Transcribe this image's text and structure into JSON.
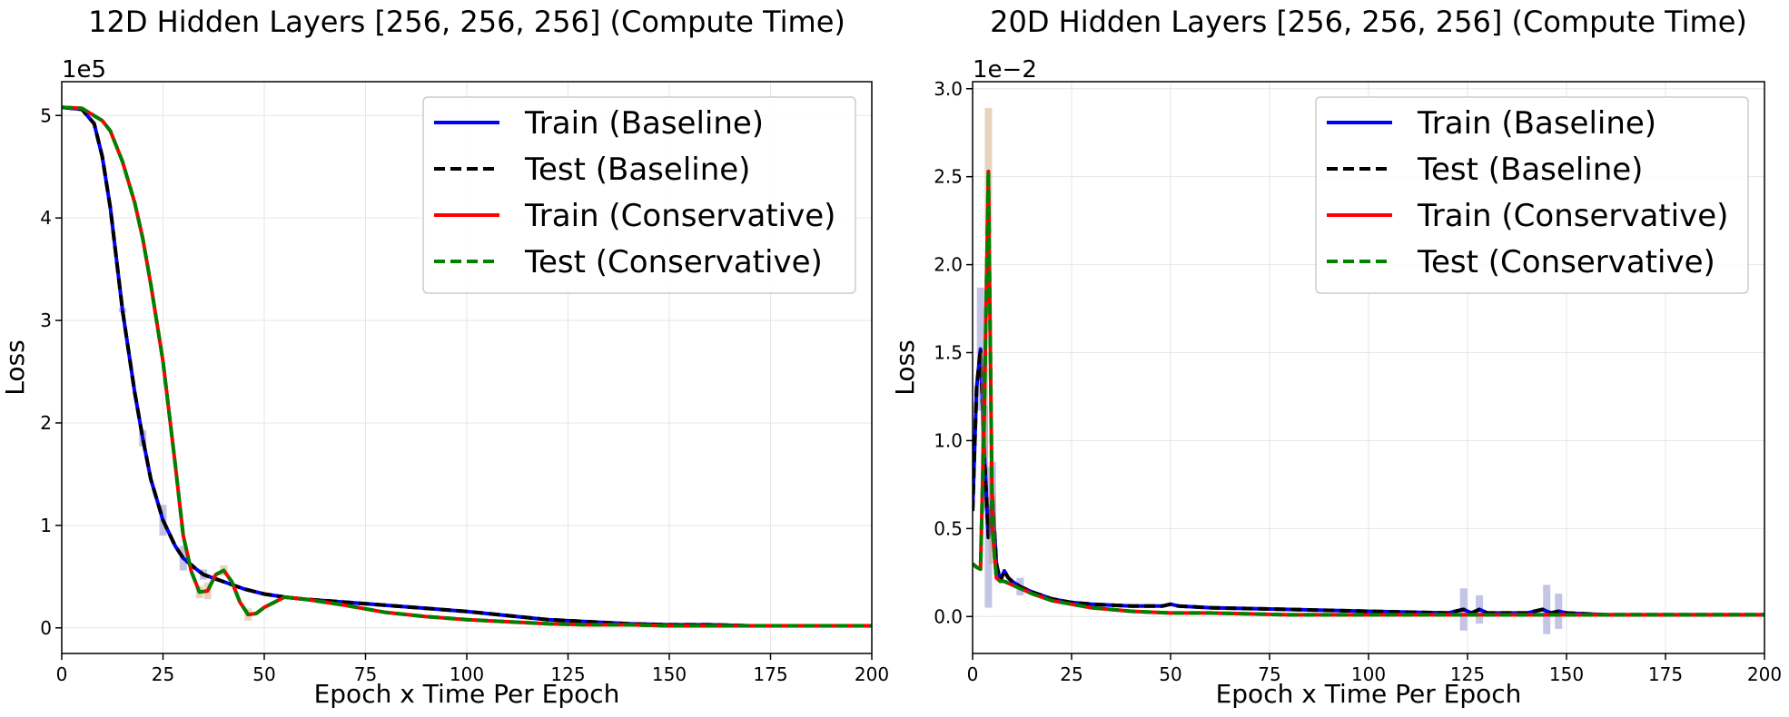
{
  "chart_data": [
    {
      "type": "line",
      "title": "12D Hidden Layers [256, 256, 256] (Compute Time)",
      "xlabel": "Epoch x Time Per Epoch",
      "ylabel": "Loss",
      "y_exponent_label": "1e5",
      "y_scale_factor": 100000,
      "xlim": [
        0,
        200
      ],
      "ylim": [
        -0.25,
        5.33
      ],
      "xticks": [
        0,
        25,
        50,
        75,
        100,
        125,
        150,
        175,
        200
      ],
      "xtick_labels": [
        "0",
        "25",
        "50",
        "75",
        "100",
        "125",
        "150",
        "175",
        "200"
      ],
      "yticks": [
        0,
        1,
        2,
        3,
        4,
        5
      ],
      "ytick_labels": [
        "0",
        "1",
        "2",
        "3",
        "4",
        "5"
      ],
      "grid": true,
      "legend_position": "top-right",
      "series": [
        {
          "name": "Train (Baseline)",
          "color": "#0000ff",
          "dash": "solid",
          "shade": "#7c7cc8",
          "band": [
            {
              "x": 15,
              "w": 0.02
            },
            {
              "x": 20,
              "w": 0.08
            },
            {
              "x": 25,
              "w": 0.15
            },
            {
              "x": 30,
              "w": 0.12
            },
            {
              "x": 35,
              "w": 0.05
            }
          ],
          "x": [
            0,
            5,
            8,
            10,
            12,
            15,
            18,
            20,
            22,
            25,
            28,
            30,
            33,
            35,
            40,
            45,
            50,
            55,
            60,
            70,
            80,
            90,
            100,
            110,
            120,
            130,
            140,
            150,
            160,
            170,
            180,
            190,
            200
          ],
          "y": [
            5.08,
            5.06,
            4.92,
            4.6,
            4.1,
            3.1,
            2.3,
            1.85,
            1.45,
            1.05,
            0.8,
            0.68,
            0.58,
            0.52,
            0.45,
            0.38,
            0.33,
            0.3,
            0.28,
            0.25,
            0.22,
            0.19,
            0.16,
            0.12,
            0.08,
            0.06,
            0.04,
            0.03,
            0.03,
            0.02,
            0.02,
            0.02,
            0.02
          ]
        },
        {
          "name": "Test (Baseline)",
          "color": "#000000",
          "dash": "dashed",
          "x": [
            0,
            5,
            8,
            10,
            12,
            15,
            18,
            20,
            22,
            25,
            28,
            30,
            33,
            35,
            40,
            45,
            50,
            55,
            60,
            70,
            80,
            90,
            100,
            110,
            120,
            130,
            140,
            150,
            160,
            170,
            180,
            190,
            200
          ],
          "y": [
            5.08,
            5.06,
            4.92,
            4.6,
            4.1,
            3.1,
            2.3,
            1.85,
            1.45,
            1.05,
            0.8,
            0.68,
            0.58,
            0.52,
            0.45,
            0.38,
            0.33,
            0.3,
            0.28,
            0.25,
            0.22,
            0.19,
            0.16,
            0.12,
            0.08,
            0.06,
            0.04,
            0.03,
            0.03,
            0.02,
            0.02,
            0.02,
            0.02
          ]
        },
        {
          "name": "Train (Conservative)",
          "color": "#ff0000",
          "dash": "solid",
          "shade": "#c8a070",
          "band": [
            {
              "x": 34,
              "w": 0.06
            },
            {
              "x": 36,
              "w": 0.08
            },
            {
              "x": 40,
              "w": 0.05
            },
            {
              "x": 46,
              "w": 0.06
            }
          ],
          "x": [
            0,
            5,
            10,
            12,
            15,
            18,
            20,
            22,
            25,
            28,
            30,
            32,
            34,
            36,
            38,
            40,
            42,
            44,
            46,
            48,
            50,
            55,
            60,
            65,
            70,
            80,
            90,
            100,
            110,
            120,
            130,
            140,
            150,
            160,
            170,
            180,
            190,
            200
          ],
          "y": [
            5.08,
            5.07,
            4.95,
            4.85,
            4.55,
            4.15,
            3.8,
            3.35,
            2.6,
            1.6,
            0.9,
            0.55,
            0.35,
            0.36,
            0.52,
            0.56,
            0.45,
            0.25,
            0.13,
            0.14,
            0.2,
            0.3,
            0.28,
            0.25,
            0.22,
            0.15,
            0.11,
            0.08,
            0.06,
            0.04,
            0.03,
            0.03,
            0.02,
            0.02,
            0.02,
            0.02,
            0.02,
            0.02
          ]
        },
        {
          "name": "Test (Conservative)",
          "color": "#008000",
          "dash": "dashed",
          "x": [
            0,
            5,
            10,
            12,
            15,
            18,
            20,
            22,
            25,
            28,
            30,
            32,
            34,
            36,
            38,
            40,
            42,
            44,
            46,
            48,
            50,
            55,
            60,
            65,
            70,
            80,
            90,
            100,
            110,
            120,
            130,
            140,
            150,
            160,
            170,
            180,
            190,
            200
          ],
          "y": [
            5.08,
            5.07,
            4.95,
            4.85,
            4.55,
            4.15,
            3.8,
            3.35,
            2.6,
            1.6,
            0.9,
            0.55,
            0.35,
            0.36,
            0.52,
            0.56,
            0.45,
            0.25,
            0.13,
            0.14,
            0.2,
            0.3,
            0.28,
            0.25,
            0.22,
            0.15,
            0.11,
            0.08,
            0.06,
            0.04,
            0.03,
            0.03,
            0.02,
            0.02,
            0.02,
            0.02,
            0.02,
            0.02
          ]
        }
      ]
    },
    {
      "type": "line",
      "title": "20D Hidden Layers [256, 256, 256] (Compute Time)",
      "xlabel": "Epoch x Time Per Epoch",
      "ylabel": "Loss",
      "y_exponent_label": "1e−2",
      "y_scale_factor": 0.01,
      "xlim": [
        0,
        200
      ],
      "ylim": [
        -0.21,
        3.04
      ],
      "xticks": [
        0,
        25,
        50,
        75,
        100,
        125,
        150,
        175,
        200
      ],
      "xtick_labels": [
        "0",
        "25",
        "50",
        "75",
        "100",
        "125",
        "150",
        "175",
        "200"
      ],
      "yticks": [
        0,
        0.5,
        1.0,
        1.5,
        2.0,
        2.5,
        3.0
      ],
      "ytick_labels": [
        "0.0",
        "0.5",
        "1.0",
        "1.5",
        "2.0",
        "2.5",
        "3.0"
      ],
      "grid": true,
      "legend_position": "top-right",
      "series": [
        {
          "name": "Train (Baseline)",
          "color": "#0000ff",
          "dash": "solid",
          "shade": "#7c7cc8",
          "band": [
            {
              "x": 2,
              "w": 0.35
            },
            {
              "x": 3,
              "w": 0.3
            },
            {
              "x": 4,
              "w": 0.4
            },
            {
              "x": 5,
              "w": 0.2
            },
            {
              "x": 12,
              "w": 0.05
            },
            {
              "x": 124,
              "w": 0.12
            },
            {
              "x": 128,
              "w": 0.08
            },
            {
              "x": 145,
              "w": 0.14
            },
            {
              "x": 148,
              "w": 0.1
            }
          ],
          "x": [
            0,
            1,
            2,
            3,
            4,
            5,
            6,
            7,
            8,
            9,
            10,
            12,
            15,
            20,
            25,
            30,
            40,
            48,
            50,
            52,
            60,
            80,
            100,
            120,
            124,
            126,
            128,
            130,
            132,
            140,
            144,
            146,
            148,
            150,
            160,
            170,
            180,
            190,
            200
          ],
          "y": [
            0.6,
            1.3,
            1.52,
            0.9,
            0.45,
            0.68,
            0.3,
            0.2,
            0.26,
            0.22,
            0.2,
            0.17,
            0.14,
            0.1,
            0.08,
            0.07,
            0.06,
            0.06,
            0.07,
            0.06,
            0.05,
            0.04,
            0.03,
            0.02,
            0.04,
            0.02,
            0.04,
            0.02,
            0.02,
            0.02,
            0.04,
            0.02,
            0.03,
            0.02,
            0.01,
            0.01,
            0.01,
            0.01,
            0.01
          ]
        },
        {
          "name": "Test (Baseline)",
          "color": "#000000",
          "dash": "dashed",
          "x": [
            0,
            1,
            2,
            3,
            4,
            5,
            6,
            7,
            8,
            9,
            10,
            12,
            15,
            20,
            25,
            30,
            40,
            48,
            50,
            52,
            60,
            80,
            100,
            120,
            124,
            126,
            128,
            130,
            132,
            140,
            144,
            146,
            148,
            150,
            160,
            170,
            180,
            190,
            200
          ],
          "y": [
            0.6,
            1.3,
            1.52,
            0.9,
            0.45,
            0.68,
            0.3,
            0.2,
            0.26,
            0.22,
            0.2,
            0.17,
            0.14,
            0.1,
            0.08,
            0.07,
            0.06,
            0.06,
            0.07,
            0.06,
            0.05,
            0.04,
            0.03,
            0.02,
            0.04,
            0.02,
            0.04,
            0.02,
            0.02,
            0.02,
            0.04,
            0.02,
            0.03,
            0.02,
            0.01,
            0.01,
            0.01,
            0.01,
            0.01
          ]
        },
        {
          "name": "Train (Conservative)",
          "color": "#ff0000",
          "dash": "solid",
          "shade": "#c8a070",
          "band": [
            {
              "x": 3,
              "w": 0.3
            },
            {
              "x": 4,
              "w": 0.36
            },
            {
              "x": 5,
              "w": 0.2
            }
          ],
          "x": [
            0,
            1,
            2,
            3,
            3.5,
            4,
            4.5,
            5,
            6,
            7,
            8,
            10,
            15,
            20,
            30,
            40,
            50,
            60,
            80,
            100,
            120,
            140,
            160,
            180,
            200
          ],
          "y": [
            0.3,
            0.28,
            0.27,
            1.2,
            1.9,
            2.53,
            1.5,
            0.5,
            0.22,
            0.2,
            0.2,
            0.18,
            0.13,
            0.09,
            0.05,
            0.03,
            0.02,
            0.02,
            0.01,
            0.01,
            0.01,
            0.01,
            0.01,
            0.01,
            0.01
          ]
        },
        {
          "name": "Test (Conservative)",
          "color": "#008000",
          "dash": "dashed",
          "x": [
            0,
            1,
            2,
            3,
            3.5,
            4,
            4.5,
            5,
            6,
            7,
            8,
            10,
            15,
            20,
            30,
            40,
            50,
            60,
            80,
            100,
            120,
            140,
            160,
            180,
            200
          ],
          "y": [
            0.3,
            0.28,
            0.27,
            1.2,
            1.9,
            2.53,
            1.5,
            0.5,
            0.22,
            0.2,
            0.2,
            0.18,
            0.13,
            0.09,
            0.05,
            0.03,
            0.02,
            0.02,
            0.01,
            0.01,
            0.01,
            0.01,
            0.01,
            0.01,
            0.01
          ]
        }
      ]
    }
  ]
}
